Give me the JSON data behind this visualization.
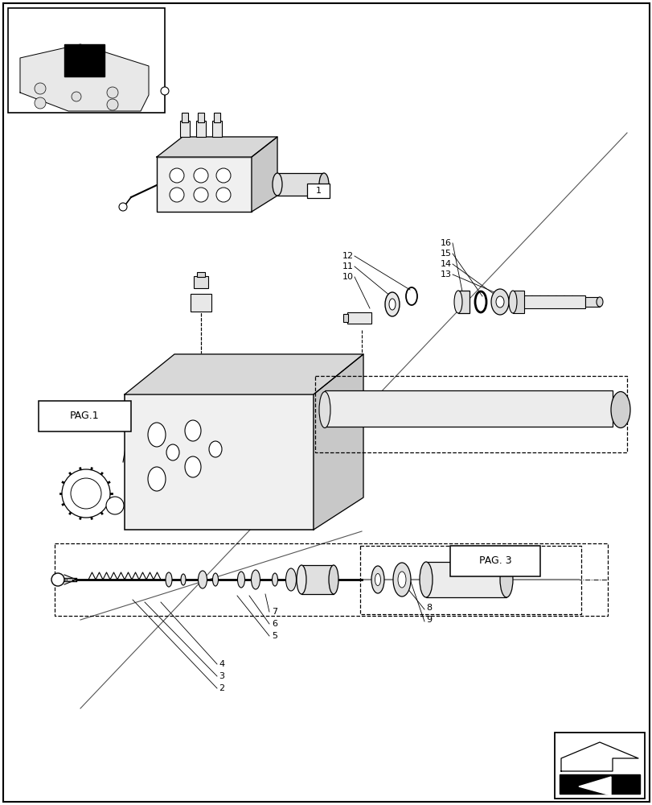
{
  "bg_color": "#ffffff",
  "line_color": "#000000",
  "fig_width": 8.12,
  "fig_height": 10.0
}
